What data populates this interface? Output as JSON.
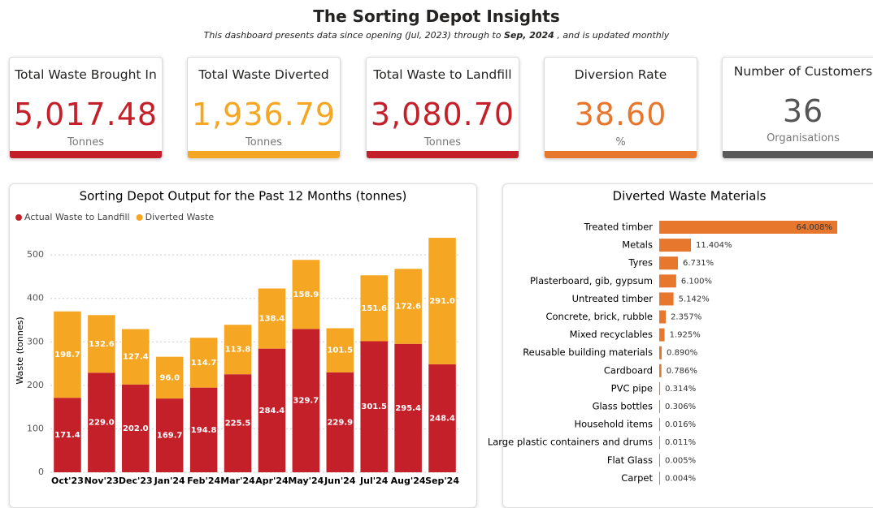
{
  "header": {
    "title": "The Sorting Depot Insights",
    "subtitle": [
      "This dashboard presents data since opening (Jul, 2023) through to ",
      "Sep, 2024",
      " , and is updated monthly"
    ]
  },
  "kpis": [
    {
      "title": "Total Waste Brought In",
      "value": "5,017.48",
      "unit": "Tonnes",
      "color": "#c4202a"
    },
    {
      "title": "Total Waste Diverted",
      "value": "1,936.79",
      "unit": "Tonnes",
      "color": "#f5a623"
    },
    {
      "title": "Total Waste to Landfill",
      "value": "3,080.70",
      "unit": "Tonnes",
      "color": "#c4202a"
    },
    {
      "title": "Diversion Rate",
      "value": "38.60",
      "unit": "%",
      "color": "#e8772e"
    },
    {
      "title": "Number of Customers",
      "value": "36",
      "unit": "Organisations",
      "color": "#5a5a5a"
    }
  ],
  "chart_data": [
    {
      "type": "stacked-bar",
      "title": "Sorting Depot Output for the Past 12 Months (tonnes)",
      "y_label": "Waste (tonnes)",
      "categories": [
        "Oct'23",
        "Nov'23",
        "Dec'23",
        "Jan'24",
        "Feb'24",
        "Mar'24",
        "Apr'24",
        "May'24",
        "Jun'24",
        "Jul'24",
        "Aug'24",
        "Sep'24"
      ],
      "series": [
        {
          "name": "Actual Waste to Landfill",
          "color": "#c4202a",
          "values": [
            171.4,
            229.0,
            202.0,
            169.7,
            194.8,
            225.5,
            284.4,
            329.7,
            229.9,
            301.5,
            295.4,
            248.4
          ],
          "value_labels": [
            "171.4",
            "229.0",
            "202.0",
            "169.7",
            "194.8",
            "225.5",
            "284.4",
            "329.7",
            "229.9",
            "301.5",
            "295.4",
            "248.4"
          ]
        },
        {
          "name": "Diverted Waste",
          "color": "#f5a623",
          "values": [
            198.7,
            132.6,
            127.4,
            96.0,
            114.7,
            113.8,
            138.4,
            158.9,
            101.5,
            151.6,
            172.6,
            291.0
          ],
          "value_labels": [
            "198.7",
            "132.6",
            "127.4",
            "96.0",
            "114.7",
            "113.8",
            "138.4",
            "158.9",
            "101.5",
            "151.6",
            "172.6",
            "291.0"
          ]
        }
      ],
      "ylim": [
        0,
        560
      ],
      "yticks": [
        0,
        100,
        200,
        300,
        400,
        500
      ],
      "grid": true,
      "legend": "top-left"
    },
    {
      "type": "hbar",
      "title": "Diverted Waste Materials",
      "color": "#e8772e",
      "categories": [
        "Treated timber",
        "Metals",
        "Tyres",
        "Plasterboard, gib, gypsum",
        "Untreated timber",
        "Concrete, brick, rubble",
        "Mixed recyclables",
        "Reusable building materials",
        "Cardboard",
        "PVC pipe",
        "Glass bottles",
        "Household items",
        "Large plastic containers and drums",
        "Flat Glass",
        "Carpet"
      ],
      "values": [
        64.008,
        11.404,
        6.731,
        6.1,
        5.142,
        2.357,
        1.925,
        0.89,
        0.786,
        0.314,
        0.306,
        0.016,
        0.011,
        0.005,
        0.004
      ],
      "value_labels": [
        "64.008%",
        "11.404%",
        "6.731%",
        "6.100%",
        "5.142%",
        "2.357%",
        "1.925%",
        "0.890%",
        "0.786%",
        "0.314%",
        "0.306%",
        "0.016%",
        "0.011%",
        "0.005%",
        "0.004%"
      ]
    }
  ]
}
